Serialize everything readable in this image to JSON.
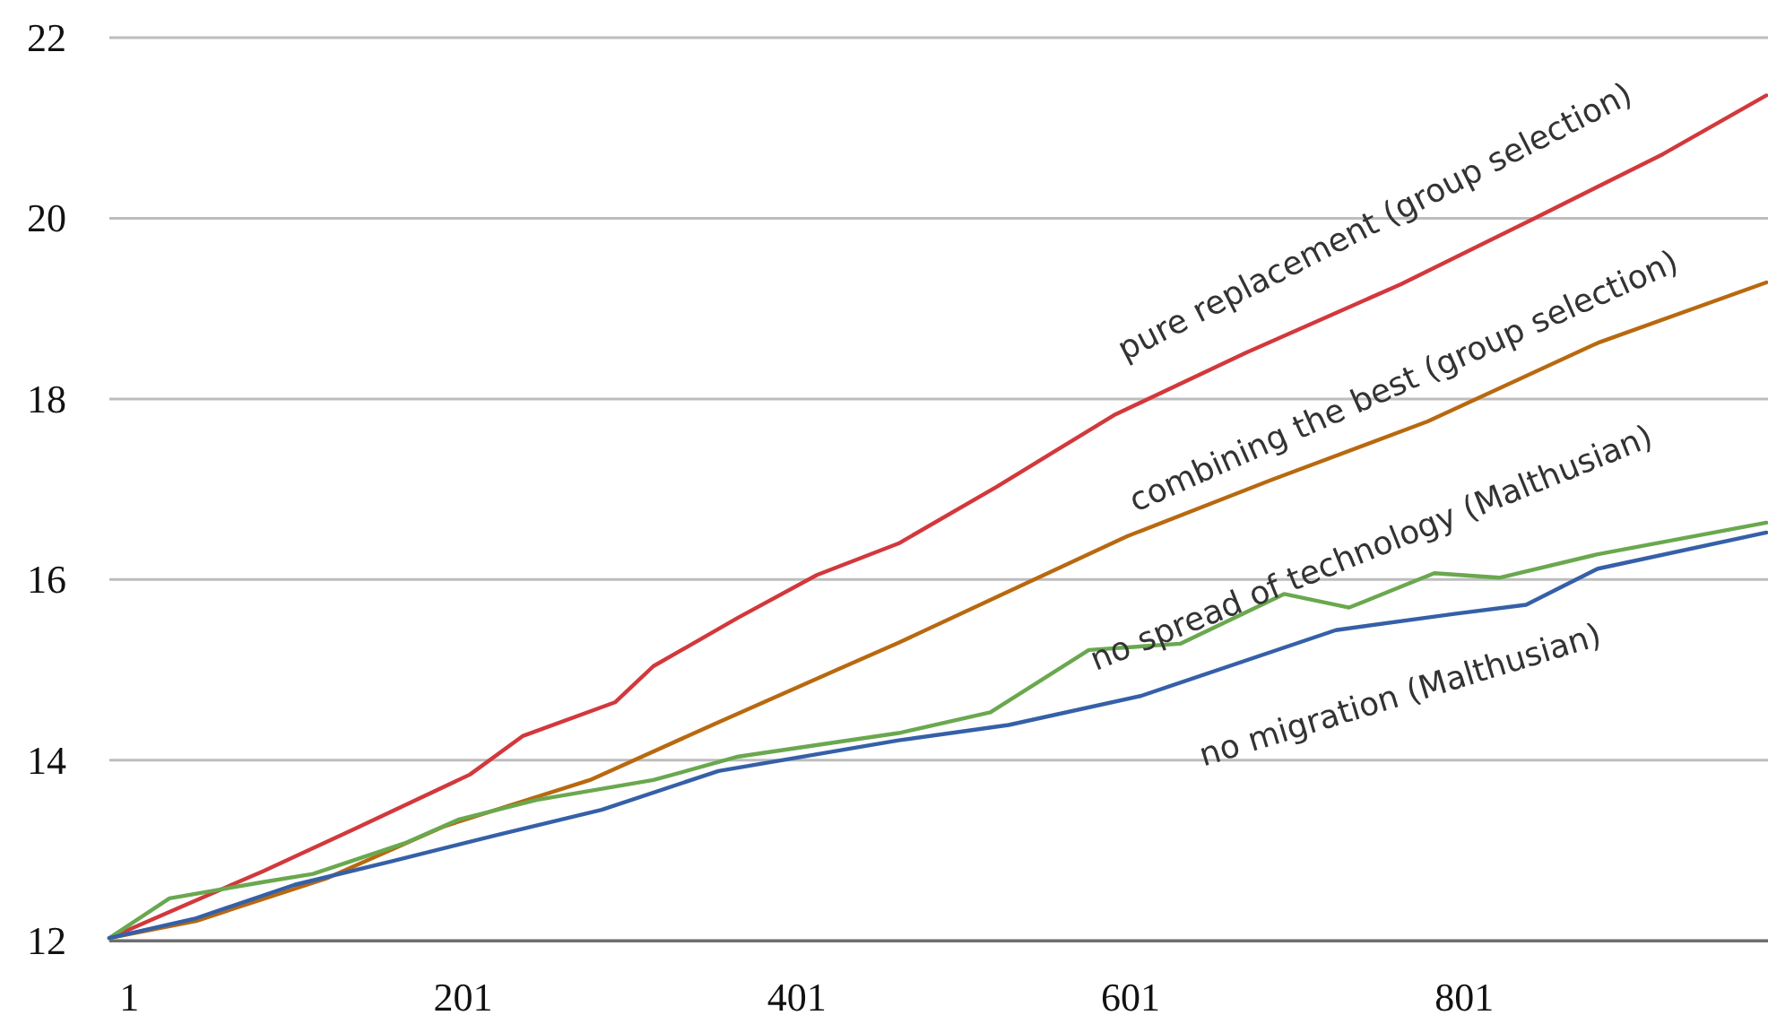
{
  "chart_data": {
    "type": "line",
    "xlim": [
      -11,
      983
    ],
    "xticks": [
      1,
      201,
      401,
      601,
      801
    ],
    "ylim": [
      12,
      22
    ],
    "yticks": [
      12,
      14,
      16,
      18,
      20,
      22
    ],
    "grid": "y",
    "marker": "none",
    "line_style": "solid",
    "series": [
      {
        "name": "pure replacement (group selection)",
        "color": "#d2383c",
        "x": [
          -11,
          81,
          135,
          205,
          237,
          292,
          315,
          366,
          413,
          462,
          521,
          591,
          670,
          763,
          842,
          920,
          982
        ],
        "values": [
          12.03,
          12.77,
          13.23,
          13.84,
          14.27,
          14.64,
          15.04,
          15.58,
          16.05,
          16.4,
          17.03,
          17.82,
          18.51,
          19.27,
          19.99,
          20.71,
          21.36
        ]
      },
      {
        "name": "combining the best (group selection)",
        "color": "#b8690f",
        "x": [
          -11,
          41,
          119,
          190,
          277,
          354,
          425,
          462,
          528,
          599,
          685,
          779,
          881,
          982
        ],
        "values": [
          12.03,
          12.22,
          12.69,
          13.27,
          13.78,
          14.42,
          15.0,
          15.3,
          15.87,
          16.48,
          17.1,
          17.75,
          18.62,
          19.29
        ]
      },
      {
        "name": "no spread of technology (Malthusian)",
        "color": "#6aa84f",
        "x": [
          -11,
          25,
          81,
          111,
          166,
          198,
          245,
          315,
          366,
          462,
          517,
          576,
          631,
          693,
          732,
          783,
          822,
          881,
          982
        ],
        "values": [
          12.03,
          12.47,
          12.65,
          12.74,
          13.08,
          13.34,
          13.56,
          13.78,
          14.04,
          14.3,
          14.53,
          15.22,
          15.29,
          15.84,
          15.69,
          16.07,
          16.02,
          16.28,
          16.63
        ]
      },
      {
        "name": "no migration (Malthusian)",
        "color": "#3560a8",
        "x": [
          -11,
          41,
          100,
          158,
          221,
          284,
          354,
          462,
          528,
          607,
          724,
          795,
          838,
          881,
          982
        ],
        "values": [
          12.03,
          12.25,
          12.62,
          12.88,
          13.17,
          13.45,
          13.88,
          14.22,
          14.39,
          14.71,
          15.44,
          15.62,
          15.72,
          16.12,
          16.52
        ]
      }
    ]
  }
}
